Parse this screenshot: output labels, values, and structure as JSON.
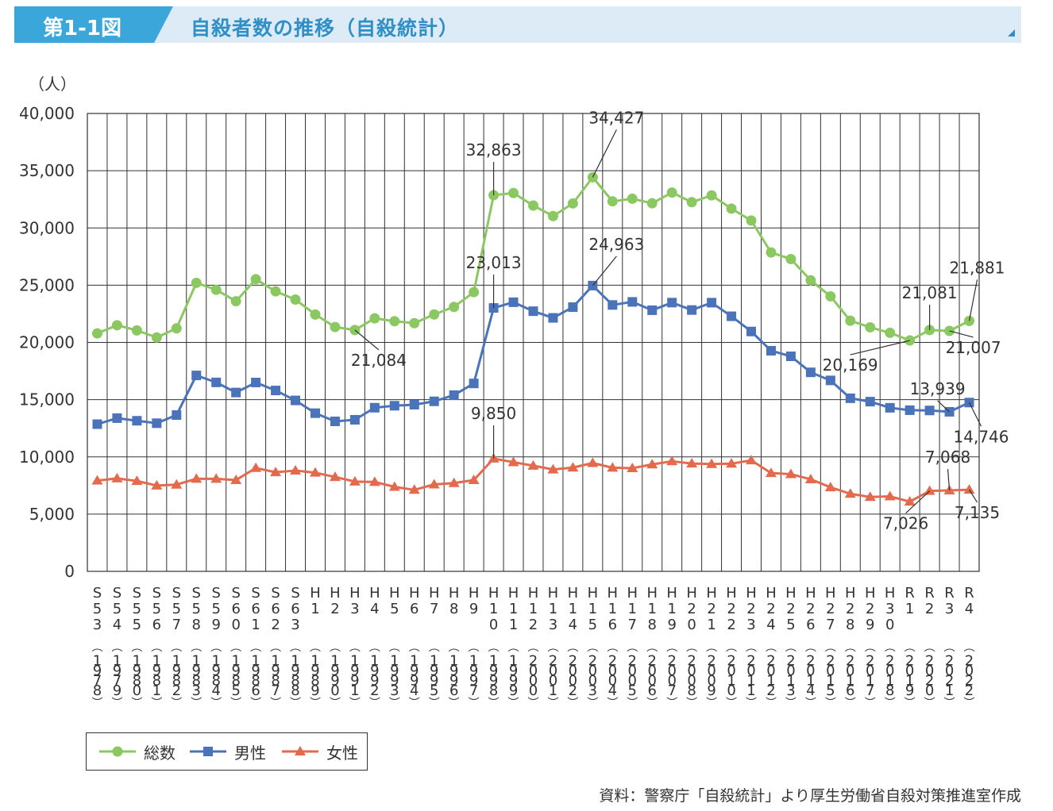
{
  "header": {
    "tag": "第1-1図",
    "title": "自殺者数の推移（自殺統計）"
  },
  "unit_label": "（人）",
  "legend": [
    {
      "name": "総数",
      "color": "#8cc861",
      "marker": "circle"
    },
    {
      "name": "男性",
      "color": "#4a73b9",
      "marker": "square"
    },
    {
      "name": "女性",
      "color": "#e46a4e",
      "marker": "triangle"
    }
  ],
  "source": "資料：警察庁「自殺統計」より厚生労働省自殺対策推進室作成",
  "chart_data": {
    "type": "line",
    "ylim": [
      0,
      40000
    ],
    "yticks": [
      "0",
      "5,000",
      "10,000",
      "15,000",
      "20,000",
      "25,000",
      "30,000",
      "35,000",
      "40,000"
    ],
    "categories": [
      {
        "era": "S53",
        "year": "1978"
      },
      {
        "era": "S54",
        "year": "1979"
      },
      {
        "era": "S55",
        "year": "1980"
      },
      {
        "era": "S56",
        "year": "1981"
      },
      {
        "era": "S57",
        "year": "1982"
      },
      {
        "era": "S58",
        "year": "1983"
      },
      {
        "era": "S59",
        "year": "1984"
      },
      {
        "era": "S60",
        "year": "1985"
      },
      {
        "era": "S61",
        "year": "1986"
      },
      {
        "era": "S62",
        "year": "1987"
      },
      {
        "era": "S63",
        "year": "1988"
      },
      {
        "era": "H1",
        "year": "1989"
      },
      {
        "era": "H2",
        "year": "1990"
      },
      {
        "era": "H3",
        "year": "1991"
      },
      {
        "era": "H4",
        "year": "1992"
      },
      {
        "era": "H5",
        "year": "1993"
      },
      {
        "era": "H6",
        "year": "1994"
      },
      {
        "era": "H7",
        "year": "1995"
      },
      {
        "era": "H8",
        "year": "1996"
      },
      {
        "era": "H9",
        "year": "1997"
      },
      {
        "era": "H10",
        "year": "1998"
      },
      {
        "era": "H11",
        "year": "1999"
      },
      {
        "era": "H12",
        "year": "2000"
      },
      {
        "era": "H13",
        "year": "2001"
      },
      {
        "era": "H14",
        "year": "2002"
      },
      {
        "era": "H15",
        "year": "2003"
      },
      {
        "era": "H16",
        "year": "2004"
      },
      {
        "era": "H17",
        "year": "2005"
      },
      {
        "era": "H18",
        "year": "2006"
      },
      {
        "era": "H19",
        "year": "2007"
      },
      {
        "era": "H20",
        "year": "2008"
      },
      {
        "era": "H21",
        "year": "2009"
      },
      {
        "era": "H22",
        "year": "2010"
      },
      {
        "era": "H23",
        "year": "2011"
      },
      {
        "era": "H24",
        "year": "2012"
      },
      {
        "era": "H25",
        "year": "2013"
      },
      {
        "era": "H26",
        "year": "2014"
      },
      {
        "era": "H27",
        "year": "2015"
      },
      {
        "era": "H28",
        "year": "2016"
      },
      {
        "era": "H29",
        "year": "2017"
      },
      {
        "era": "H30",
        "year": "2018"
      },
      {
        "era": "R1",
        "year": "2019"
      },
      {
        "era": "R2",
        "year": "2020"
      },
      {
        "era": "R3",
        "year": "2021"
      },
      {
        "era": "R4",
        "year": "2022"
      }
    ],
    "series": [
      {
        "name": "総数",
        "color": "#8cc861",
        "marker": "circle",
        "values": [
          20788,
          21503,
          21048,
          20434,
          21228,
          25202,
          24596,
          23599,
          25524,
          24460,
          23742,
          22436,
          21346,
          21084,
          22104,
          21851,
          21679,
          22445,
          23104,
          24391,
          32863,
          33048,
          31957,
          31042,
          32143,
          34427,
          32325,
          32552,
          32155,
          33093,
          32249,
          32845,
          31690,
          30651,
          27858,
          27283,
          25427,
          24025,
          21897,
          21321,
          20840,
          20169,
          21081,
          21007,
          21881
        ]
      },
      {
        "name": "男性",
        "color": "#4a73b9",
        "marker": "square",
        "values": [
          12859,
          13386,
          13155,
          12942,
          13654,
          17116,
          16508,
          15624,
          16497,
          15802,
          14934,
          13818,
          13102,
          13242,
          14296,
          14468,
          14560,
          14853,
          15393,
          16416,
          23013,
          23512,
          22727,
          22144,
          23080,
          24963,
          23272,
          23540,
          22813,
          23478,
          22831,
          23472,
          22283,
          20955,
          19273,
          18787,
          17386,
          16681,
          15121,
          14826,
          14290,
          14078,
          14055,
          13939,
          14746
        ]
      },
      {
        "name": "女性",
        "color": "#e46a4e",
        "marker": "triangle",
        "values": [
          7929,
          8117,
          7893,
          7492,
          7574,
          8086,
          8088,
          7975,
          9027,
          8658,
          8808,
          8618,
          8244,
          7842,
          7808,
          7383,
          7119,
          7592,
          7711,
          7975,
          9850,
          9536,
          9230,
          8898,
          9063,
          9464,
          9053,
          9012,
          9342,
          9615,
          9418,
          9373,
          9407,
          9696,
          8585,
          8496,
          8041,
          7344,
          6776,
          6495,
          6550,
          6091,
          7026,
          7068,
          7135
        ]
      }
    ],
    "annotations": [
      {
        "series": 0,
        "index": 13,
        "text": "21,084"
      },
      {
        "series": 0,
        "index": 20,
        "text": "32,863"
      },
      {
        "series": 0,
        "index": 25,
        "text": "34,427"
      },
      {
        "series": 0,
        "index": 41,
        "text": "20,169"
      },
      {
        "series": 0,
        "index": 42,
        "text": "21,081"
      },
      {
        "series": 0,
        "index": 43,
        "text": "21,007"
      },
      {
        "series": 0,
        "index": 44,
        "text": "21,881"
      },
      {
        "series": 1,
        "index": 20,
        "text": "23,013"
      },
      {
        "series": 1,
        "index": 25,
        "text": "24,963"
      },
      {
        "series": 1,
        "index": 43,
        "text": "13,939"
      },
      {
        "series": 1,
        "index": 44,
        "text": "14,746"
      },
      {
        "series": 2,
        "index": 20,
        "text": "9,850"
      },
      {
        "series": 2,
        "index": 42,
        "text": "7,026"
      },
      {
        "series": 2,
        "index": 43,
        "text": "7,068"
      },
      {
        "series": 2,
        "index": 44,
        "text": "7,135"
      }
    ]
  }
}
